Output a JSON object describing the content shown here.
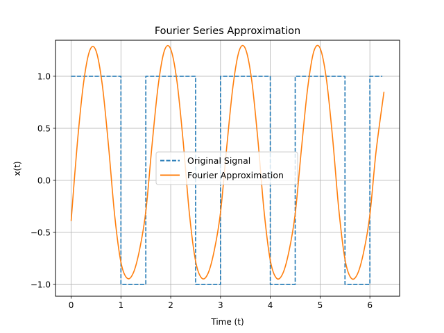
{
  "chart_data": {
    "type": "line",
    "title": "Fourier Series Approximation",
    "xlabel": "Time (t)",
    "ylabel": "x(t)",
    "xlim": [
      -0.314,
      6.597
    ],
    "ylim": [
      -1.113,
      1.346
    ],
    "x_ticks": [
      0,
      1,
      2,
      3,
      4,
      5,
      6
    ],
    "x_tick_labels": [
      "0",
      "1",
      "2",
      "3",
      "4",
      "5",
      "6"
    ],
    "y_ticks": [
      -1.0,
      -0.5,
      0.0,
      0.5,
      1.0
    ],
    "y_tick_labels": [
      "−1.0",
      "−0.5",
      "0.0",
      "0.5",
      "1.0"
    ],
    "grid": true,
    "legend_position": "center",
    "series": [
      {
        "name": "Original Signal",
        "color": "#1f77b4",
        "style": "dashed",
        "step": true,
        "x": [
          0,
          1,
          1,
          1.5,
          1.5,
          2.5,
          2.5,
          3,
          3,
          4,
          4,
          4.5,
          4.5,
          5.5,
          5.5,
          6,
          6,
          6.25
        ],
        "y": [
          1,
          1,
          -1,
          -1,
          1,
          1,
          -1,
          -1,
          1,
          1,
          -1,
          -1,
          1,
          1,
          -1,
          -1,
          1,
          1
        ]
      },
      {
        "name": "Fourier Approximation",
        "color": "#ff7f0e",
        "style": "solid",
        "x": [
          0,
          0.125,
          0.25,
          0.375,
          0.5,
          0.625,
          0.75,
          0.875,
          1.0,
          1.125,
          1.25,
          1.375,
          1.5,
          1.625,
          1.75,
          1.875,
          2.0,
          2.125,
          2.25,
          2.375,
          2.5,
          2.625,
          2.75,
          2.875,
          3.0,
          3.125,
          3.25,
          3.375,
          3.5,
          3.625,
          3.75,
          3.875,
          4.0,
          4.125,
          4.25,
          4.375,
          4.5,
          4.625,
          4.75,
          4.875,
          5.0,
          5.125,
          5.25,
          5.375,
          5.5,
          5.625,
          5.75,
          5.875,
          6.0,
          6.125,
          6.283
        ],
        "y": [
          -0.39,
          0.36,
          0.937,
          1.249,
          1.244,
          0.921,
          0.336,
          -0.339,
          -0.786,
          -0.94,
          -0.888,
          -0.665,
          -0.299,
          0.34,
          0.917,
          1.249,
          1.26,
          0.953,
          0.374,
          -0.318,
          -0.777,
          -0.94,
          -0.893,
          -0.673,
          -0.31,
          0.32,
          0.902,
          1.245,
          1.265,
          0.968,
          0.394,
          -0.296,
          -0.768,
          -0.94,
          -0.896,
          -0.682,
          -0.322,
          0.3,
          0.884,
          1.24,
          1.27,
          0.98,
          0.415,
          -0.275,
          -0.758,
          -0.94,
          -0.9,
          -0.69,
          -0.333,
          0.28,
          0.85
        ]
      }
    ]
  }
}
